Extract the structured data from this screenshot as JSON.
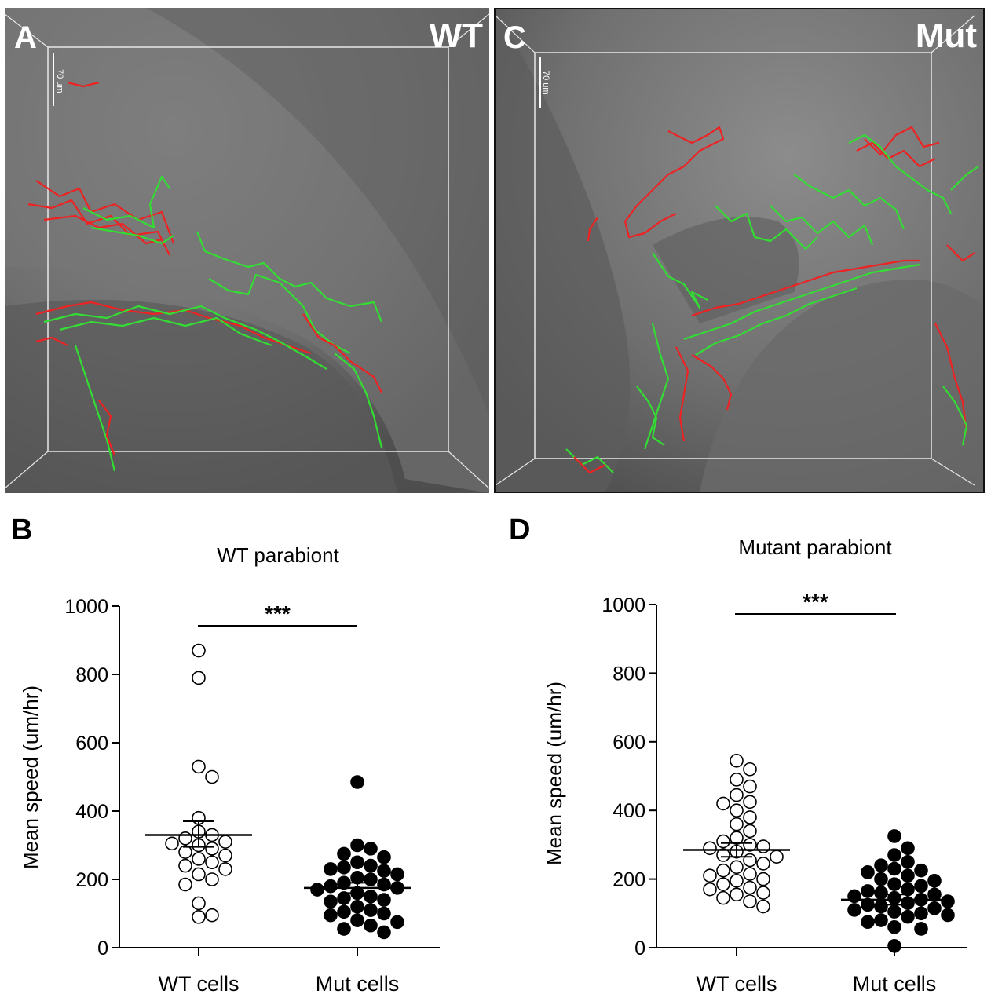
{
  "panels": {
    "A": {
      "letter": "A",
      "corner_label": "WT",
      "scale": "70 um"
    },
    "C": {
      "letter": "C",
      "corner_label": "Mut",
      "scale": "70 um"
    },
    "B": {
      "letter": "B"
    },
    "D": {
      "letter": "D"
    }
  },
  "colors": {
    "track_green": "#33dd33",
    "track_red": "#ee2222",
    "background_gray": "#707070"
  },
  "chart_data": [
    {
      "panel": "B",
      "type": "scatter",
      "title": "WT parabiont",
      "ylabel": "Mean speed (um/hr)",
      "xlabel": "",
      "categories": [
        "WT cells",
        "Mut cells"
      ],
      "ylim": [
        0,
        1000
      ],
      "yticks": [
        0,
        200,
        400,
        600,
        800,
        1000
      ],
      "significance": "***",
      "series": [
        {
          "name": "WT cells",
          "marker": "open",
          "values": [
            870,
            790,
            530,
            500,
            380,
            340,
            330,
            320,
            310,
            305,
            300,
            290,
            280,
            270,
            260,
            250,
            240,
            230,
            215,
            200,
            185,
            130,
            90,
            95
          ],
          "mean": 330,
          "sem_upper": 370,
          "sem_lower": 295
        },
        {
          "name": "Mut cells",
          "marker": "filled",
          "values": [
            485,
            300,
            290,
            275,
            265,
            250,
            240,
            235,
            230,
            225,
            215,
            205,
            200,
            190,
            185,
            180,
            175,
            170,
            160,
            150,
            145,
            140,
            135,
            120,
            110,
            105,
            100,
            95,
            80,
            75,
            65,
            55,
            45
          ],
          "mean": 175,
          "sem_upper": 190,
          "sem_lower": 160
        }
      ]
    },
    {
      "panel": "D",
      "type": "scatter",
      "title": "Mutant parabiont",
      "ylabel": "Mean speed (um/hr)",
      "xlabel": "",
      "categories": [
        "WT cells",
        "Mut cells"
      ],
      "ylim": [
        0,
        1000
      ],
      "yticks": [
        0,
        200,
        400,
        600,
        800,
        1000
      ],
      "significance": "***",
      "series": [
        {
          "name": "WT cells",
          "marker": "open",
          "values": [
            545,
            520,
            490,
            470,
            445,
            425,
            420,
            400,
            380,
            360,
            340,
            320,
            310,
            300,
            295,
            290,
            280,
            270,
            265,
            255,
            245,
            235,
            225,
            215,
            210,
            200,
            195,
            185,
            175,
            170,
            160,
            155,
            145,
            135,
            120
          ],
          "mean": 285,
          "sem_upper": 305,
          "sem_lower": 265
        },
        {
          "name": "Mut cells",
          "marker": "filled",
          "values": [
            325,
            290,
            270,
            250,
            240,
            230,
            225,
            220,
            210,
            200,
            195,
            185,
            180,
            170,
            165,
            160,
            155,
            150,
            145,
            140,
            135,
            130,
            125,
            120,
            115,
            110,
            105,
            100,
            95,
            90,
            80,
            75,
            60,
            55,
            5
          ],
          "mean": 140,
          "sem_upper": 155,
          "sem_lower": 125
        }
      ]
    }
  ]
}
